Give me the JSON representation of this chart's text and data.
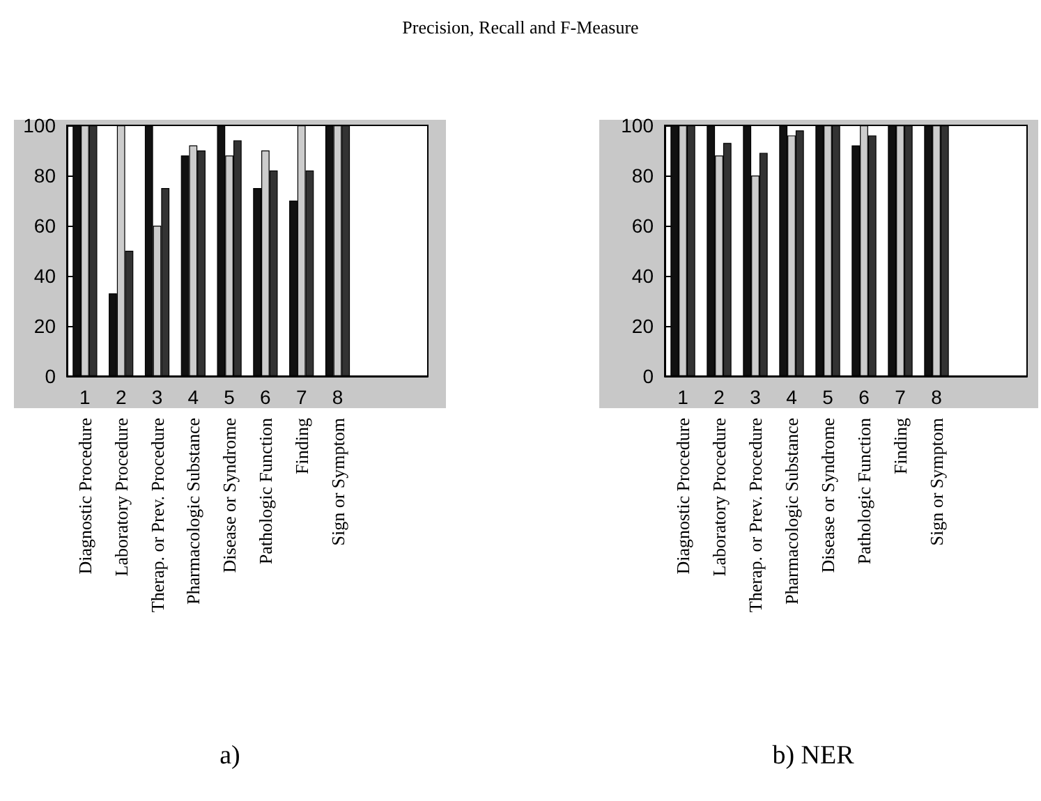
{
  "chart_data": [
    {
      "type": "bar",
      "title": "Precision, Recall and F-Measure",
      "subtitle": "a)",
      "categories": [
        "1",
        "2",
        "3",
        "4",
        "5",
        "6",
        "7",
        "8",
        null,
        null
      ],
      "series": [
        {
          "color": "#111111",
          "values": [
            100,
            33,
            100,
            88,
            100,
            75,
            70,
            100,
            null,
            null
          ]
        },
        {
          "color": "#cccccc",
          "values": [
            100,
            100,
            60,
            92,
            88,
            90,
            100,
            100,
            null,
            null
          ]
        },
        {
          "color": "#333333",
          "values": [
            100,
            50,
            75,
            90,
            94,
            82,
            82,
            100,
            null,
            null
          ]
        }
      ],
      "ylim": [
        0,
        100
      ],
      "yticks": [
        0,
        20,
        40,
        60,
        80,
        100
      ],
      "grid": false,
      "annotations": [
        "Diagnostic Procedure",
        "Laboratory Procedure",
        "Therap. or Prev. Procedure",
        "Pharmacologic Substance",
        "Disease or Syndrome",
        "Pathologic Function",
        "Finding",
        "Sign or Symptom"
      ]
    },
    {
      "type": "bar",
      "subtitle": "b) NER",
      "categories": [
        "1",
        "2",
        "3",
        "4",
        "5",
        "6",
        "7",
        "8",
        null,
        null
      ],
      "series": [
        {
          "color": "#111111",
          "values": [
            100,
            100,
            100,
            100,
            100,
            92,
            100,
            100,
            null,
            null
          ]
        },
        {
          "color": "#cccccc",
          "values": [
            100,
            88,
            80,
            96,
            100,
            100,
            100,
            100,
            null,
            null
          ]
        },
        {
          "color": "#333333",
          "values": [
            100,
            93,
            89,
            98,
            100,
            96,
            100,
            100,
            null,
            null
          ]
        }
      ],
      "ylim": [
        0,
        100
      ],
      "yticks": [
        0,
        20,
        40,
        60,
        80,
        100
      ],
      "grid": false,
      "annotations": [
        "Diagnostic Procedure",
        "Laboratory Procedure",
        "Therap. or Prev. Procedure",
        "Pharmacologic Substance",
        "Disease or Syndrome",
        "Pathologic Function",
        "Finding",
        "Sign or Symptom"
      ]
    }
  ]
}
